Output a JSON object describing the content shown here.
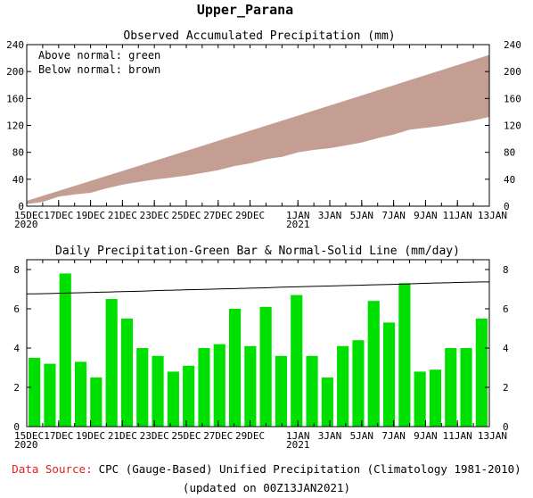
{
  "page_title": "Upper_Parana",
  "chart_data": [
    {
      "type": "area",
      "title": "Observed Accumulated Precipitation (mm)",
      "legend": [
        "Above normal: green",
        "Below normal: brown"
      ],
      "legend_placement": "top-left",
      "colors": {
        "below_normal": "#c49e93",
        "above_normal": "#00e000",
        "axis": "#000000"
      },
      "x_day_index": [
        0,
        1,
        2,
        3,
        4,
        5,
        6,
        7,
        8,
        9,
        10,
        11,
        12,
        13,
        14,
        15,
        16,
        17,
        18,
        19,
        20,
        21,
        22,
        23,
        24,
        25,
        26,
        27,
        28,
        29
      ],
      "x_ticks": [
        {
          "day": 0,
          "label": "15DEC",
          "sub": "2020"
        },
        {
          "day": 2,
          "label": "17DEC",
          "sub": ""
        },
        {
          "day": 4,
          "label": "19DEC",
          "sub": ""
        },
        {
          "day": 6,
          "label": "21DEC",
          "sub": ""
        },
        {
          "day": 8,
          "label": "23DEC",
          "sub": ""
        },
        {
          "day": 10,
          "label": "25DEC",
          "sub": ""
        },
        {
          "day": 12,
          "label": "27DEC",
          "sub": ""
        },
        {
          "day": 14,
          "label": "29DEC",
          "sub": ""
        },
        {
          "day": 17,
          "label": "1JAN",
          "sub": "2021"
        },
        {
          "day": 19,
          "label": "3JAN",
          "sub": ""
        },
        {
          "day": 21,
          "label": "5JAN",
          "sub": ""
        },
        {
          "day": 23,
          "label": "7JAN",
          "sub": ""
        },
        {
          "day": 25,
          "label": "9JAN",
          "sub": ""
        },
        {
          "day": 27,
          "label": "11JAN",
          "sub": ""
        },
        {
          "day": 29,
          "label": "13JAN",
          "sub": ""
        }
      ],
      "ylim": [
        0,
        240
      ],
      "yticks": [
        0,
        40,
        80,
        120,
        160,
        200,
        240
      ],
      "series": [
        {
          "name": "Normal",
          "values": [
            7.5,
            14.9,
            22.3,
            29.7,
            37.1,
            44.5,
            51.9,
            59.3,
            66.8,
            74.2,
            81.7,
            89.2,
            96.7,
            104.2,
            111.7,
            119.1,
            126.6,
            134.1,
            141.6,
            149.1,
            156.6,
            164.1,
            171.7,
            179.2,
            186.7,
            194.2,
            201.7,
            209.2,
            216.7,
            224.3
          ]
        },
        {
          "name": "Observed",
          "values": [
            3.5,
            6.7,
            14.5,
            17.8,
            20.3,
            26.8,
            32.3,
            36.3,
            39.9,
            42.7,
            45.8,
            49.7,
            53.9,
            59.9,
            64,
            70.1,
            73.7,
            80.4,
            84,
            86.5,
            90.6,
            95,
            101.4,
            106.7,
            114,
            116.8,
            119.7,
            123.7,
            127.6,
            133.1
          ]
        }
      ]
    },
    {
      "type": "bar",
      "title": "Daily Precipitation-Green Bar & Normal-Solid Line (mm/day)",
      "colors": {
        "bar": "#00e000",
        "normal_line": "#000000"
      },
      "ylim": [
        0,
        8.5
      ],
      "yticks": [
        0,
        2,
        4,
        6,
        8
      ],
      "x_ticks_same_as_panel_1": true,
      "series": [
        {
          "name": "Daily precipitation",
          "values": [
            3.5,
            3.2,
            7.8,
            3.3,
            2.5,
            6.5,
            5.5,
            4,
            3.6,
            2.8,
            3.1,
            4,
            4.2,
            6,
            4.1,
            6.1,
            3.6,
            6.7,
            3.6,
            2.5,
            4.1,
            4.4,
            6.4,
            5.3,
            7.3,
            2.8,
            2.9,
            4,
            4,
            5.5
          ]
        },
        {
          "name": "Normal",
          "values": [
            6.76,
            6.78,
            6.8,
            6.82,
            6.84,
            6.86,
            6.88,
            6.9,
            6.93,
            6.95,
            6.97,
            6.99,
            7.01,
            7.03,
            7.05,
            7.07,
            7.1,
            7.12,
            7.14,
            7.16,
            7.18,
            7.2,
            7.22,
            7.24,
            7.26,
            7.29,
            7.31,
            7.33,
            7.35,
            7.37
          ]
        }
      ]
    }
  ],
  "footer": {
    "source_label": "Data Source:",
    "source_text": "CPC (Gauge-Based) Unified Precipitation (Climatology 1981-2010)",
    "updated_text": "(updated on 00Z13JAN2021)"
  }
}
